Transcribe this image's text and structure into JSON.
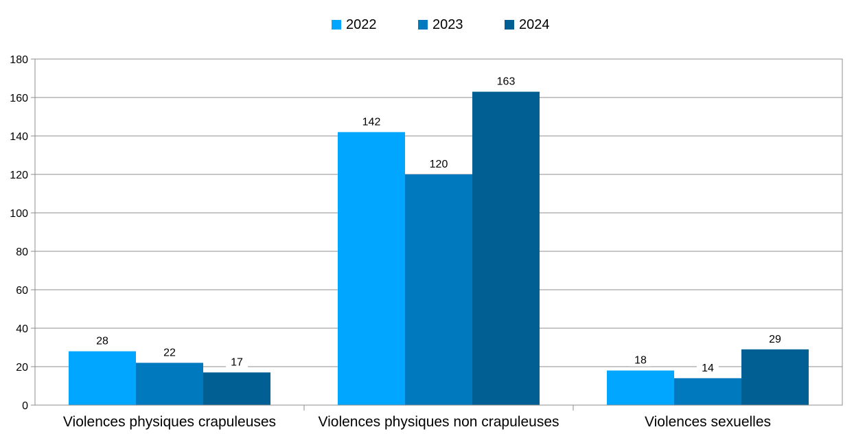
{
  "chart_data": {
    "type": "bar",
    "categories": [
      "Violences physiques crapuleuses",
      "Violences physiques non crapuleuses",
      "Violences sexuelles"
    ],
    "series": [
      {
        "name": "2022",
        "values": [
          28,
          142,
          18
        ],
        "color": "#00a6ff"
      },
      {
        "name": "2023",
        "values": [
          22,
          120,
          14
        ],
        "color": "#0079bf"
      },
      {
        "name": "2024",
        "values": [
          17,
          163,
          29
        ],
        "color": "#015f94"
      }
    ],
    "ylim": [
      0,
      180
    ],
    "ytick_step": 20,
    "ytick_labels": [
      "0",
      "20",
      "40",
      "60",
      "80",
      "100",
      "120",
      "140",
      "160",
      "180"
    ],
    "grid": true,
    "legend_position": "top-center",
    "data_labels": true
  }
}
